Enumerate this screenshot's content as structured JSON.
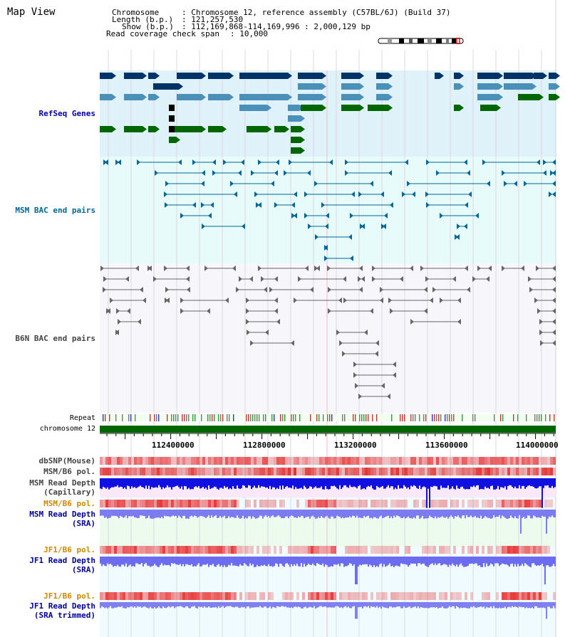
{
  "view_title": "Map View",
  "header": {
    "chromosome_key": "Chromosome",
    "chromosome_value": ": Chromosome 12, reference assembly (C57BL/6J) (Build 37)",
    "length_key": "Length (b.p.)",
    "length_value": ": 121,257,530",
    "show_key": "Show (b.p.)",
    "show_value": ": 112,169,868-114,169,996 : 2,000,129 bp",
    "span_key": "Read coverage check span",
    "span_value": ": 10,000"
  },
  "tracks": {
    "refseq": "RefSeq Genes",
    "msm_bac": "MSM BAC end pairs",
    "b6n_bac": "B6N BAC end pairs",
    "repeat": "Repeat",
    "chromosome": "chromosome 12",
    "dbsnp": "dbSNP(Mouse)",
    "msm_b6_pol": "MSM/B6 pol.",
    "msm_depth_cap_1": "MSM Read Depth",
    "msm_depth_cap_2": "(Capillary)",
    "msm_b6_pol_2": "MSM/B6 pol.",
    "msm_depth_sra_1": "MSM Read Depth",
    "msm_depth_sra_2": "(SRA)",
    "jf1_b6_pol": "JF1/B6 pol.",
    "jf1_depth_sra_1": "JF1 Read Depth",
    "jf1_depth_sra_2": "(SRA)",
    "jf1_b6_pol_2": "JF1/B6 pol.",
    "jf1_depth_trim_1": "JF1 Read Depth",
    "jf1_depth_trim_2": "(SRA trimmed)"
  },
  "axis_ticks": [
    "112400000",
    "112800000",
    "113200000",
    "113600000",
    "114000000"
  ],
  "colors": {
    "refseq_label": "#0000aa",
    "msm_label": "#006699",
    "orange_label": "#cc8800",
    "dark_blue_label": "#000099",
    "gene_navy": "#003366",
    "gene_teal": "#4a90b8",
    "gene_green": "#006600",
    "chromosome_bar": "#006600"
  }
}
